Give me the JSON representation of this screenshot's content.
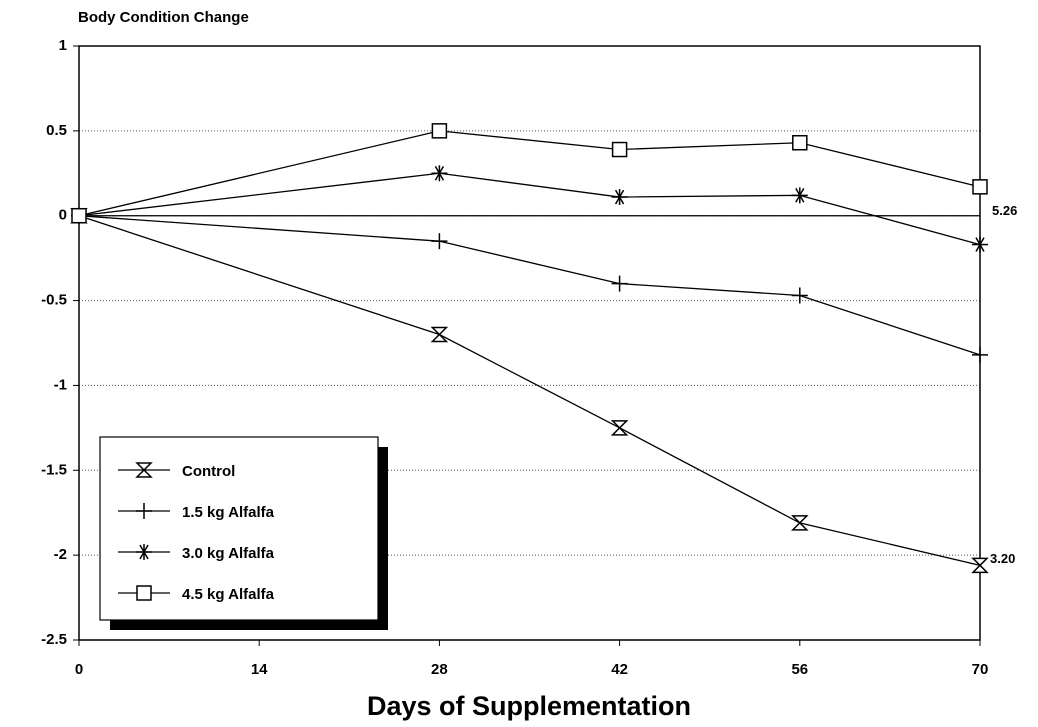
{
  "chart_data": {
    "type": "line",
    "title": "Body Condition Change",
    "x_label": "Days of Supplementation",
    "x": [
      0,
      28,
      42,
      56,
      70
    ],
    "series": [
      {
        "name": "Control",
        "color": "#000000",
        "marker": "hourglass",
        "values": [
          0,
          -0.7,
          -1.25,
          -1.81,
          -2.06
        ]
      },
      {
        "name": "1.5 kg Alfalfa",
        "color": "#000000",
        "marker": "plus",
        "values": [
          0,
          -0.15,
          -0.4,
          -0.47,
          -0.82
        ]
      },
      {
        "name": "3.0 kg Alfalfa",
        "color": "#000000",
        "marker": "asterisk",
        "values": [
          0,
          0.25,
          0.11,
          0.12,
          -0.17
        ]
      },
      {
        "name": "4.5 kg Alfalfa",
        "color": "#000000",
        "marker": "square",
        "values": [
          0,
          0.5,
          0.39,
          0.43,
          0.17
        ]
      }
    ],
    "annotations": [
      {
        "text": "5.26"
      },
      {
        "text": "3.20"
      }
    ],
    "xlim": [
      0,
      70
    ],
    "xticks": [
      0,
      14,
      28,
      42,
      56,
      70
    ],
    "ylim": [
      -2.5,
      1
    ],
    "yticks": [
      1,
      0.5,
      0,
      -0.5,
      -1,
      -1.5,
      -2,
      -2.5
    ],
    "grid": true,
    "legend": "lower left"
  }
}
